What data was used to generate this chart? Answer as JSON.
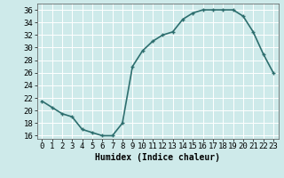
{
  "x": [
    0,
    1,
    2,
    3,
    4,
    5,
    6,
    7,
    8,
    9,
    10,
    11,
    12,
    13,
    14,
    15,
    16,
    17,
    18,
    19,
    20,
    21,
    22,
    23
  ],
  "y": [
    21.5,
    20.5,
    19.5,
    19.0,
    17.0,
    16.5,
    16.0,
    16.0,
    18.0,
    27.0,
    29.5,
    31.0,
    32.0,
    32.5,
    34.5,
    35.5,
    36.0,
    36.0,
    36.0,
    36.0,
    35.0,
    32.5,
    29.0,
    26.0
  ],
  "line_color": "#2d6e6e",
  "marker": "+",
  "marker_size": 3.5,
  "linewidth": 1.2,
  "xlabel": "Humidex (Indice chaleur)",
  "xlim": [
    -0.5,
    23.5
  ],
  "ylim": [
    15.5,
    37
  ],
  "yticks": [
    16,
    18,
    20,
    22,
    24,
    26,
    28,
    30,
    32,
    34,
    36
  ],
  "xticks": [
    0,
    1,
    2,
    3,
    4,
    5,
    6,
    7,
    8,
    9,
    10,
    11,
    12,
    13,
    14,
    15,
    16,
    17,
    18,
    19,
    20,
    21,
    22,
    23
  ],
  "xtick_labels": [
    "0",
    "1",
    "2",
    "3",
    "4",
    "5",
    "6",
    "7",
    "8",
    "9",
    "10",
    "11",
    "12",
    "13",
    "14",
    "15",
    "16",
    "17",
    "18",
    "19",
    "20",
    "21",
    "22",
    "23"
  ],
  "background_color": "#ceeaea",
  "grid_color": "#ffffff",
  "grid_linewidth": 0.7,
  "xlabel_fontsize": 7,
  "tick_fontsize": 6.5
}
